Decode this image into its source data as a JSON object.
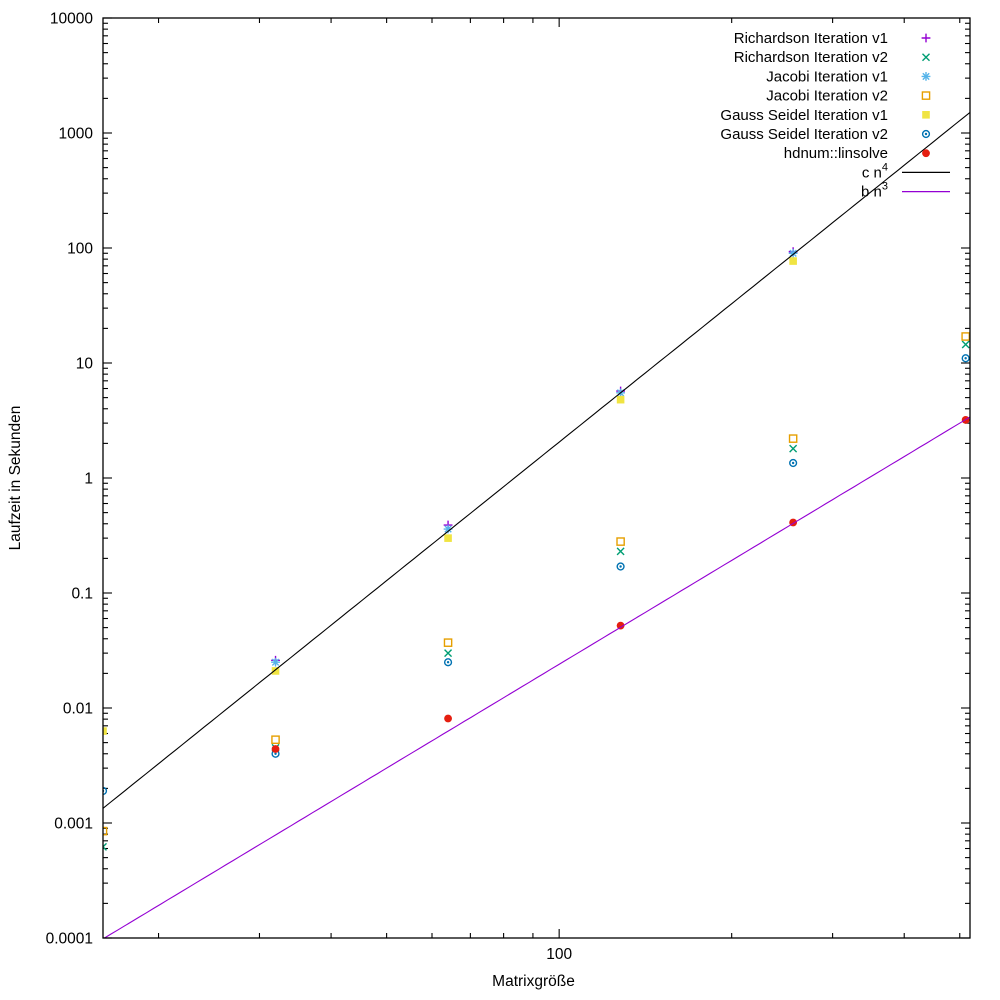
{
  "chart_data": {
    "type": "scatter",
    "title": "",
    "xlabel": "Matrixgröße",
    "ylabel": "Laufzeit in Sekunden",
    "xscale": "log",
    "yscale": "log",
    "xlim": [
      16,
      521
    ],
    "ylim": [
      0.0001,
      10000
    ],
    "grid": false,
    "legend_position": "top-right-inside",
    "x_major_ticks": [
      100
    ],
    "x_tick_labels": [
      "100"
    ],
    "x_minor_ticks": [
      20,
      30,
      40,
      50,
      60,
      70,
      80,
      90,
      200,
      300,
      400,
      500
    ],
    "y_major_ticks": [
      10000,
      1000,
      100,
      10,
      1,
      0.1,
      0.01,
      0.001,
      0.0001
    ],
    "y_tick_labels": [
      "10000",
      "1000",
      "100",
      "10",
      "1",
      "0.1",
      "0.01",
      "0.001",
      "0.0001"
    ],
    "series": [
      {
        "name": "Richardson Iteration v1",
        "color": "#9400d3",
        "marker": "plus",
        "points": [
          [
            32,
            0.026
          ],
          [
            64,
            0.39
          ],
          [
            128,
            5.7
          ],
          [
            256,
            93
          ]
        ]
      },
      {
        "name": "Richardson Iteration v2",
        "color": "#009e73",
        "marker": "cross",
        "points": [
          [
            16,
            0.00062
          ],
          [
            32,
            0.0045
          ],
          [
            64,
            0.03
          ],
          [
            128,
            0.23
          ],
          [
            256,
            1.8
          ],
          [
            512,
            14.5
          ]
        ]
      },
      {
        "name": "Jacobi Iteration v1",
        "color": "#56b4e9",
        "marker": "asterisk",
        "points": [
          [
            32,
            0.025
          ],
          [
            64,
            0.36
          ],
          [
            128,
            5.5
          ],
          [
            256,
            90
          ]
        ]
      },
      {
        "name": "Jacobi Iteration v2",
        "color": "#e69f00",
        "marker": "open-square",
        "points": [
          [
            16,
            0.00085
          ],
          [
            32,
            0.0053
          ],
          [
            64,
            0.037
          ],
          [
            128,
            0.28
          ],
          [
            256,
            2.2
          ],
          [
            512,
            17
          ]
        ]
      },
      {
        "name": "Gauss Seidel Iteration v1",
        "color": "#f0e442",
        "marker": "filled-square",
        "points": [
          [
            16,
            0.0063
          ],
          [
            32,
            0.021
          ],
          [
            64,
            0.3
          ],
          [
            128,
            4.8
          ],
          [
            256,
            77
          ]
        ]
      },
      {
        "name": "Gauss Seidel Iteration v2",
        "color": "#0072b2",
        "marker": "open-circle",
        "points": [
          [
            16,
            0.0019
          ],
          [
            32,
            0.004
          ],
          [
            64,
            0.025
          ],
          [
            128,
            0.17
          ],
          [
            256,
            1.35
          ],
          [
            512,
            11
          ]
        ]
      },
      {
        "name": "hdnum::linsolve",
        "color": "#e51e10",
        "marker": "filled-circle",
        "points": [
          [
            32,
            0.0044
          ],
          [
            64,
            0.0081
          ],
          [
            128,
            0.052
          ],
          [
            256,
            0.41
          ],
          [
            512,
            3.2
          ]
        ]
      }
    ],
    "reference_lines": [
      {
        "label": "c n",
        "sup": "4",
        "color": "#000000",
        "coefficient": 2.05e-08,
        "exponent": 4
      },
      {
        "label": "b n",
        "sup": "3",
        "color": "#9400d3",
        "coefficient": 2.4e-08,
        "exponent": 3
      }
    ]
  }
}
